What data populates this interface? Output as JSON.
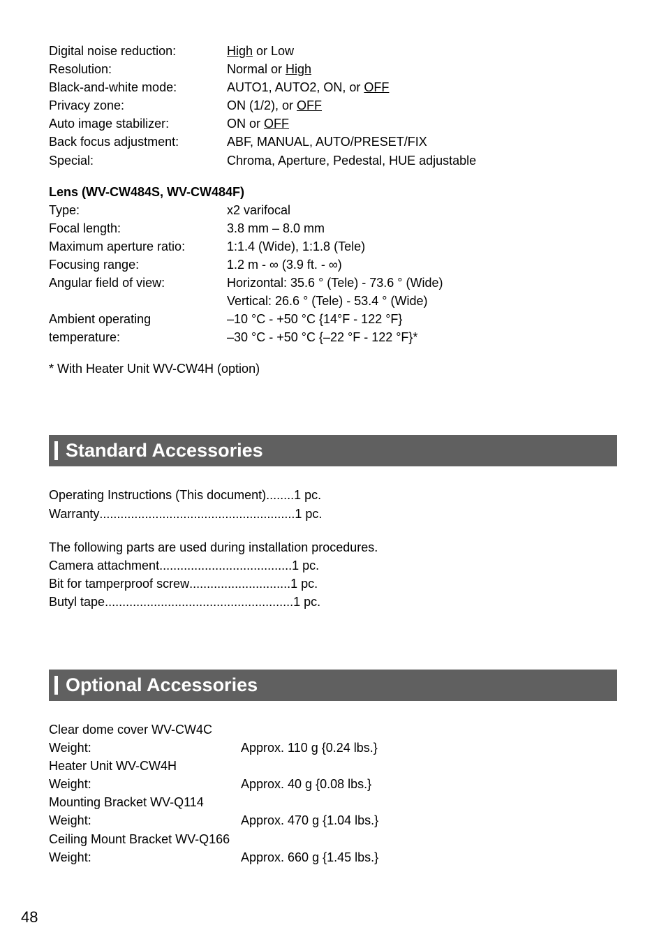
{
  "specs_top": [
    {
      "label": "Digital noise reduction:",
      "value_pre": "",
      "value_u": "High",
      "value_post": " or Low"
    },
    {
      "label": "Resolution:",
      "value_pre": "Normal or ",
      "value_u": "High",
      "value_post": ""
    },
    {
      "label": "Black-and-white mode:",
      "value_pre": "AUTO1, AUTO2, ON, or ",
      "value_u": "OFF",
      "value_post": ""
    },
    {
      "label": "Privacy zone:",
      "value_pre": "ON (1/2), or ",
      "value_u": "OFF",
      "value_post": ""
    },
    {
      "label": "Auto image stabilizer:",
      "value_pre": "ON or ",
      "value_u": "OFF",
      "value_post": ""
    },
    {
      "label": "Back focus adjustment:",
      "value_pre": "ABF, MANUAL, AUTO/PRESET/FIX",
      "value_u": "",
      "value_post": ""
    },
    {
      "label": "Special:",
      "value_pre": "Chroma, Aperture, Pedestal, HUE adjustable",
      "value_u": "",
      "value_post": ""
    }
  ],
  "lens_heading": "Lens (WV-CW484S, WV-CW484F)",
  "lens_specs": [
    {
      "label": "Type:",
      "value": "x2 varifocal"
    },
    {
      "label": "Focal length:",
      "value": "3.8 mm – 8.0 mm"
    },
    {
      "label": "Maximum aperture ratio:",
      "value": "1:1.4 (Wide), 1:1.8 (Tele)"
    },
    {
      "label": "Focusing range:",
      "value": "1.2 m - ∞ (3.9 ft. - ∞)"
    },
    {
      "label": "Angular field of view:",
      "value": "Horizontal: 35.6 ° (Tele) - 73.6 ° (Wide)"
    },
    {
      "label": "",
      "value": "Vertical: 26.6 ° (Tele) - 53.4 ° (Wide)"
    },
    {
      "label": "Ambient operating",
      "value": "–10 °C - +50 °C {14°F - 122 °F}"
    },
    {
      "label": "temperature:",
      "value": "–30 °C - +50 °C {–22 °F - 122 °F}*"
    }
  ],
  "footnote": "* With Heater Unit WV-CW4H (option)",
  "std_acc_header": "Standard Accessories",
  "std_acc_rows": [
    {
      "lead": "Operating Instructions (This document)",
      "dots": " ........ ",
      "tail": "1 pc."
    },
    {
      "lead": "Warranty",
      "dots": " ........................................................ ",
      "tail": "1 pc."
    }
  ],
  "std_acc_note": "The following parts are used during installation procedures.",
  "std_acc_rows2": [
    {
      "lead": "Camera attachment",
      "dots": " ...................................... ",
      "tail": "1 pc."
    },
    {
      "lead": "Bit for tamperproof screw",
      "dots": " ............................. ",
      "tail": "1 pc."
    },
    {
      "lead": "Butyl tape",
      "dots": " ...................................................... ",
      "tail": "1 pc."
    }
  ],
  "opt_acc_header": "Optional Accessories",
  "opt_items": [
    {
      "name": "Clear dome cover WV-CW4C",
      "weight_label": "Weight:",
      "weight_value": "Approx. 110 g {0.24 lbs.}"
    },
    {
      "name": "Heater Unit WV-CW4H",
      "weight_label": "Weight:",
      "weight_value": "Approx. 40 g {0.08 lbs.}"
    },
    {
      "name": "Mounting Bracket WV-Q114",
      "weight_label": "Weight:",
      "weight_value": "Approx. 470 g {1.04 lbs.}"
    },
    {
      "name": "Ceiling Mount Bracket WV-Q166",
      "weight_label": "Weight:",
      "weight_value": "Approx. 660 g {1.45 lbs.}"
    }
  ],
  "page_number": "48"
}
